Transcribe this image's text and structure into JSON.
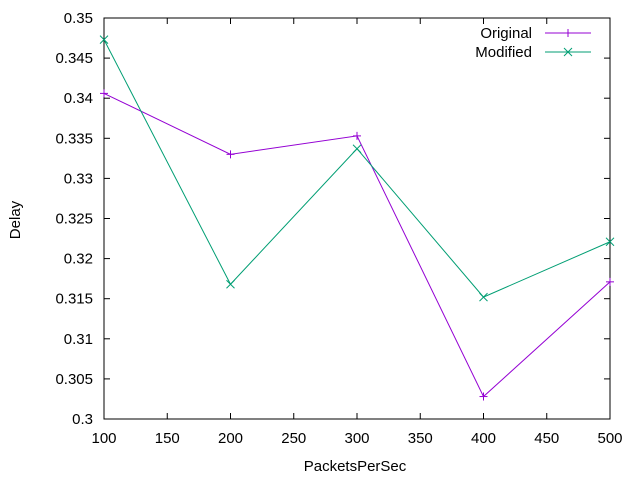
{
  "chart_data": {
    "type": "line",
    "title": "",
    "xlabel": "PacketsPerSec",
    "ylabel": "Delay",
    "xlim": [
      100,
      500
    ],
    "ylim": [
      0.3,
      0.35
    ],
    "xticks": [
      100,
      150,
      200,
      250,
      300,
      350,
      400,
      450,
      500
    ],
    "yticks": [
      0.3,
      0.305,
      0.31,
      0.315,
      0.32,
      0.325,
      0.33,
      0.335,
      0.34,
      0.345,
      0.35
    ],
    "ytick_labels": [
      "0.3",
      "0.305",
      "0.31",
      "0.315",
      "0.32",
      "0.325",
      "0.33",
      "0.335",
      "0.34",
      "0.345",
      "0.35"
    ],
    "grid": false,
    "legend": "top-right",
    "series": [
      {
        "name": "Original",
        "color": "#9400d3",
        "marker": "plus",
        "x": [
          100,
          200,
          300,
          400,
          500
        ],
        "y": [
          0.3406,
          0.333,
          0.3353,
          0.3028,
          0.3171
        ]
      },
      {
        "name": "Modified",
        "color": "#009e73",
        "marker": "cross",
        "x": [
          100,
          200,
          300,
          400,
          500
        ],
        "y": [
          0.3473,
          0.3168,
          0.3337,
          0.3152,
          0.3221
        ]
      }
    ]
  }
}
